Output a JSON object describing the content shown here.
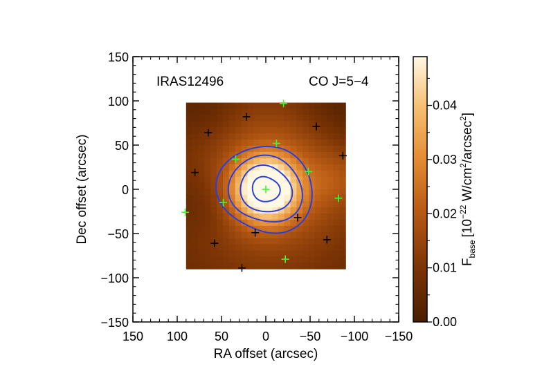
{
  "chart_data": {
    "type": "heatmap",
    "annotation_left": "IRAS12496",
    "annotation_right": "CO J=5−4",
    "xlabel": "RA offset (arcsec)",
    "ylabel": "Dec offset (arcsec)",
    "xlim": [
      150,
      -150
    ],
    "ylim": [
      -150,
      150
    ],
    "xticks": [
      150,
      100,
      50,
      0,
      -50,
      -100,
      -150
    ],
    "yticks": [
      150,
      100,
      50,
      0,
      -50,
      -100,
      -150
    ],
    "xtick_labels": [
      "150",
      "100",
      "50",
      "0",
      "−50",
      "−100",
      "−150"
    ],
    "ytick_labels": [
      "150",
      "100",
      "50",
      "0",
      "−50",
      "−100",
      "−150"
    ],
    "map_extent": {
      "x": [
        90,
        -90
      ],
      "y": [
        -90,
        98
      ]
    },
    "map_grid": {
      "nx": 26,
      "ny": 27
    },
    "peak": {
      "x": 0,
      "y": 0,
      "value": 0.048
    },
    "colorbar": {
      "label_main": "F",
      "label_sub": "base",
      "label_rest": "[10",
      "label_exp": "−22",
      "label_unit": " W/cm",
      "label_unit_exp": "2",
      "label_unit_tail": "/arcsec",
      "label_unit_tail_exp": "2",
      "label_close": "]",
      "range": [
        0.0,
        0.049
      ],
      "ticks": [
        0.0,
        0.01,
        0.02,
        0.03,
        0.04
      ],
      "tick_labels": [
        "0.00",
        "0.01",
        "0.02",
        "0.03",
        "0.04"
      ]
    },
    "contours": {
      "color": "#2a3fe0",
      "radii": [
        52,
        40,
        28,
        15
      ]
    },
    "markers_black": [
      {
        "x": 65,
        "y": 64
      },
      {
        "x": 22,
        "y": 82
      },
      {
        "x": -57,
        "y": 71
      },
      {
        "x": -87,
        "y": 38
      },
      {
        "x": 80,
        "y": 19
      },
      {
        "x": -36,
        "y": -32
      },
      {
        "x": 12,
        "y": -49
      },
      {
        "x": 58,
        "y": -61
      },
      {
        "x": -69,
        "y": -57
      },
      {
        "x": 27,
        "y": -89
      }
    ],
    "markers_green": [
      {
        "x": -20,
        "y": 97
      },
      {
        "x": -12,
        "y": 52
      },
      {
        "x": 34,
        "y": 34
      },
      {
        "x": -48,
        "y": 20
      },
      {
        "x": 0,
        "y": 0
      },
      {
        "x": 48,
        "y": -15
      },
      {
        "x": -82,
        "y": -10
      },
      {
        "x": 91,
        "y": -26
      },
      {
        "x": -22,
        "y": -79
      }
    ],
    "marker_colors": {
      "black": "#000000",
      "green": "#33ff33"
    }
  }
}
